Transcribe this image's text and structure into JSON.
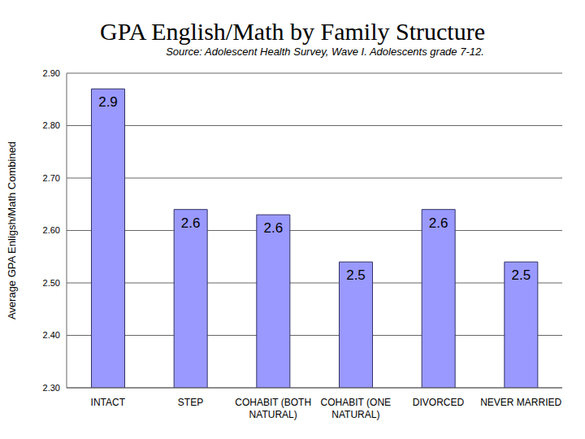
{
  "chart_data": {
    "type": "bar",
    "title": "GPA English/Math by Family Structure",
    "subtitle": "Source: Adolescent Health Survey, Wave I. Adolescents grade 7-12.",
    "y_label": "Average GPA Enligsh/Math Combined",
    "categories": [
      "INTACT",
      "STEP",
      "COHABIT (BOTH NATURAL)",
      "COHABIT (ONE NATURAL)",
      "DIVORCED",
      "NEVER MARRIED"
    ],
    "values": [
      2.87,
      2.64,
      2.63,
      2.54,
      2.64,
      2.54
    ],
    "value_labels": [
      "2.9",
      "2.6",
      "2.6",
      "2.5",
      "2.6",
      "2.5"
    ],
    "data_labels": true,
    "color": "#9999ff",
    "ylim": [
      2.3,
      2.9
    ],
    "yticks": [
      {
        "value": 2.3,
        "label": "2.30"
      },
      {
        "value": 2.4,
        "label": "2.40"
      },
      {
        "value": 2.5,
        "label": "2.50"
      },
      {
        "value": 2.6,
        "label": "2.60"
      },
      {
        "value": 2.7,
        "label": "2.70"
      },
      {
        "value": 2.8,
        "label": "2.80"
      },
      {
        "value": 2.9,
        "label": "2.90"
      }
    ],
    "grid": true
  }
}
